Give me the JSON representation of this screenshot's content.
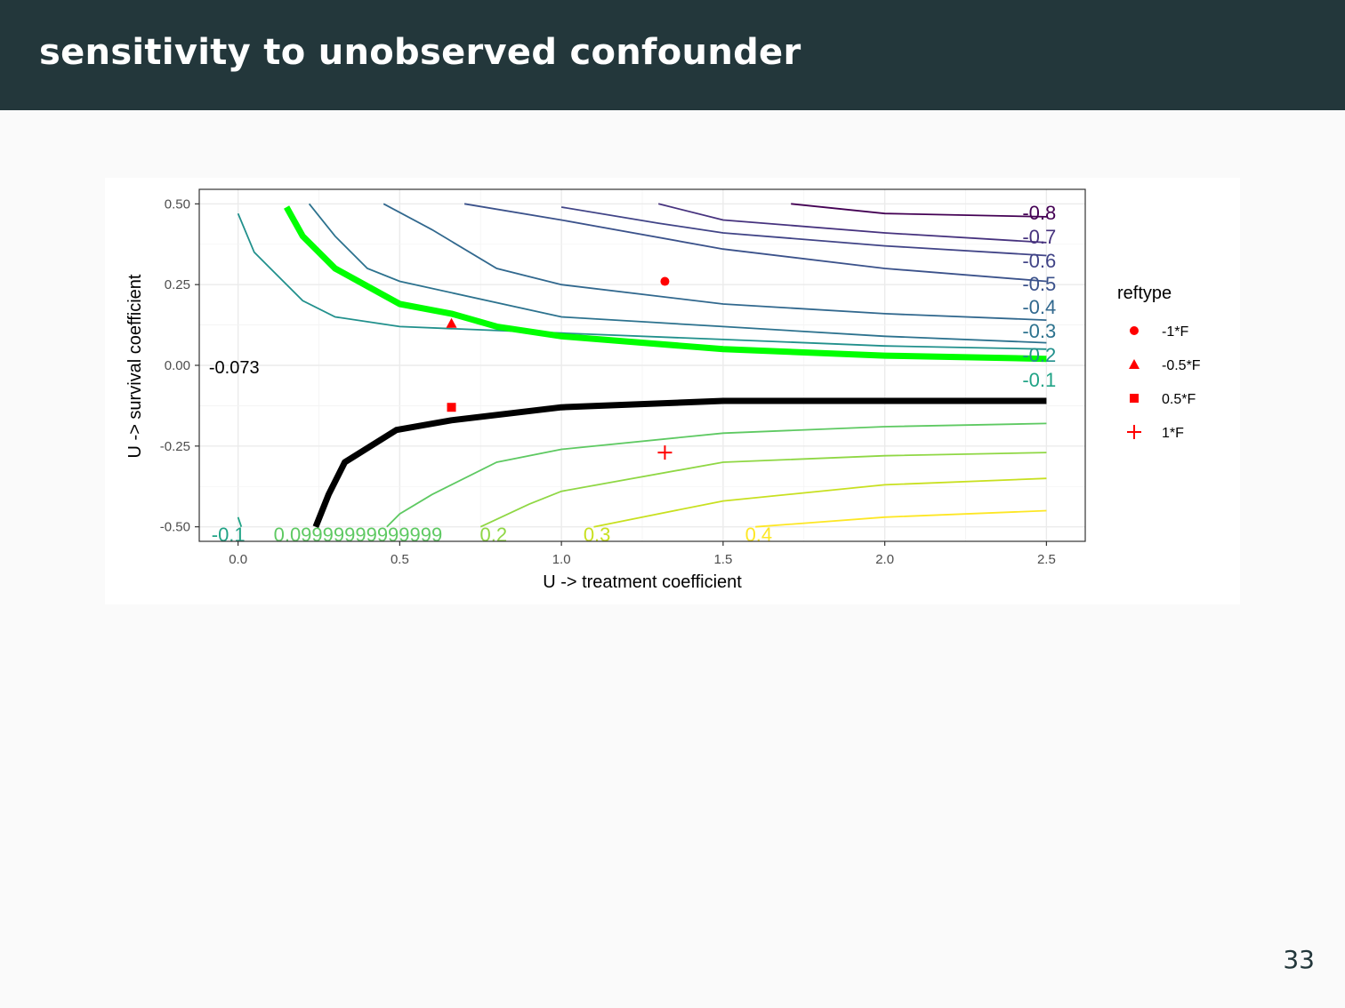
{
  "slide": {
    "title": "sensitivity to unobserved confounder",
    "page_number": "33"
  },
  "chart_data": {
    "type": "line",
    "xlabel": "U -> treatment coefficient",
    "ylabel": "U -> survival coefficient",
    "xlim": [
      -0.12,
      2.62
    ],
    "ylim": [
      -0.545,
      0.545
    ],
    "x_ticks": [
      "0.0",
      "0.5",
      "1.0",
      "1.5",
      "2.0",
      "2.5"
    ],
    "x_tick_values": [
      0,
      0.5,
      1.0,
      1.5,
      2.0,
      2.5
    ],
    "y_ticks": [
      "-0.50",
      "-0.25",
      "0.00",
      "0.25",
      "0.50"
    ],
    "y_tick_values": [
      -0.5,
      -0.25,
      0,
      0.25,
      0.5
    ],
    "grid": true,
    "legend": {
      "title": "reftype",
      "position": "right",
      "entries": [
        {
          "label": "-1*F",
          "shape": "circle"
        },
        {
          "label": "-0.5*F",
          "shape": "triangle"
        },
        {
          "label": "0.5*F",
          "shape": "square"
        },
        {
          "label": "1*F",
          "shape": "plus"
        }
      ]
    },
    "contours": [
      {
        "label": "-0.8",
        "color": "#440154",
        "points": [
          [
            1.71,
            0.5
          ],
          [
            2.0,
            0.47
          ],
          [
            2.5,
            0.46
          ]
        ]
      },
      {
        "label": "-0.7",
        "color": "#46327e",
        "points": [
          [
            1.3,
            0.5
          ],
          [
            1.5,
            0.45
          ],
          [
            2.0,
            0.41
          ],
          [
            2.5,
            0.38
          ]
        ]
      },
      {
        "label": "-0.6",
        "color": "#414487",
        "points": [
          [
            1.0,
            0.49
          ],
          [
            1.3,
            0.44
          ],
          [
            1.5,
            0.41
          ],
          [
            2.0,
            0.37
          ],
          [
            2.5,
            0.34
          ]
        ]
      },
      {
        "label": "-0.5",
        "color": "#3b528b",
        "points": [
          [
            0.7,
            0.5
          ],
          [
            1.0,
            0.45
          ],
          [
            1.5,
            0.36
          ],
          [
            2.0,
            0.3
          ],
          [
            2.5,
            0.26
          ]
        ]
      },
      {
        "label": "-0.4",
        "color": "#31688e",
        "points": [
          [
            0.45,
            0.5
          ],
          [
            0.6,
            0.42
          ],
          [
            0.8,
            0.3
          ],
          [
            1.0,
            0.25
          ],
          [
            1.5,
            0.19
          ],
          [
            2.0,
            0.16
          ],
          [
            2.5,
            0.14
          ]
        ]
      },
      {
        "label": "-0.3",
        "color": "#2c728e",
        "points": [
          [
            0.22,
            0.5
          ],
          [
            0.3,
            0.4
          ],
          [
            0.4,
            0.3
          ],
          [
            0.5,
            0.26
          ],
          [
            1.0,
            0.15
          ],
          [
            1.5,
            0.12
          ],
          [
            2.0,
            0.09
          ],
          [
            2.5,
            0.07
          ]
        ]
      },
      {
        "label": "-0.2",
        "color": "#21908c",
        "points": [
          [
            0.0,
            0.47
          ],
          [
            0.05,
            0.35
          ],
          [
            0.1,
            0.3
          ],
          [
            0.2,
            0.2
          ],
          [
            0.3,
            0.15
          ],
          [
            0.5,
            0.12
          ],
          [
            1.0,
            0.1
          ],
          [
            1.5,
            0.08
          ],
          [
            2.0,
            0.06
          ],
          [
            2.5,
            0.05
          ]
        ]
      },
      {
        "label": "-0.1",
        "color": "#20a386",
        "points": [
          [
            0.0,
            -0.47
          ],
          [
            0.01,
            -0.5
          ]
        ]
      },
      {
        "label": "0.1",
        "color": "#5ec962",
        "points": [
          [
            0.46,
            -0.5
          ],
          [
            0.5,
            -0.46
          ],
          [
            0.6,
            -0.4
          ],
          [
            0.8,
            -0.3
          ],
          [
            1.0,
            -0.26
          ],
          [
            1.5,
            -0.21
          ],
          [
            2.0,
            -0.19
          ],
          [
            2.5,
            -0.18
          ]
        ]
      },
      {
        "label": "0.2",
        "color": "#8fd744",
        "points": [
          [
            0.75,
            -0.5
          ],
          [
            0.9,
            -0.43
          ],
          [
            1.0,
            -0.39
          ],
          [
            1.5,
            -0.3
          ],
          [
            2.0,
            -0.28
          ],
          [
            2.5,
            -0.27
          ]
        ]
      },
      {
        "label": "0.3",
        "color": "#c8e020",
        "points": [
          [
            1.1,
            -0.5
          ],
          [
            1.3,
            -0.46
          ],
          [
            1.5,
            -0.42
          ],
          [
            2.0,
            -0.37
          ],
          [
            2.5,
            -0.35
          ]
        ]
      },
      {
        "label": "0.4",
        "color": "#fde725",
        "points": [
          [
            1.6,
            -0.5
          ],
          [
            2.0,
            -0.47
          ],
          [
            2.5,
            -0.45
          ]
        ]
      }
    ],
    "right_labels": [
      "-0.8",
      "-0.7",
      "-0.6",
      "-0.5",
      "-0.4",
      "-0.3",
      "-0.2",
      "-0.1"
    ],
    "bottom_labels": [
      {
        "text": "-0.1",
        "color": "#20a386"
      },
      {
        "text": "0.09999999999999",
        "color": "#5ec962"
      },
      {
        "text": "0.2",
        "color": "#8fd744"
      },
      {
        "text": "0.3",
        "color": "#c8e020"
      },
      {
        "text": "0.4",
        "color": "#fde725"
      }
    ],
    "highlight_green": {
      "color": "#00ff00",
      "points": [
        [
          0.15,
          0.49
        ],
        [
          0.2,
          0.4
        ],
        [
          0.3,
          0.3
        ],
        [
          0.5,
          0.19
        ],
        [
          0.66,
          0.16
        ],
        [
          0.8,
          0.12
        ],
        [
          1.0,
          0.09
        ],
        [
          1.5,
          0.05
        ],
        [
          2.0,
          0.03
        ],
        [
          2.5,
          0.02
        ]
      ]
    },
    "highlight_black": {
      "color": "#000000",
      "label": "-0.073",
      "points": [
        [
          0.24,
          -0.5
        ],
        [
          0.28,
          -0.4
        ],
        [
          0.33,
          -0.3
        ],
        [
          0.49,
          -0.2
        ],
        [
          0.66,
          -0.17
        ],
        [
          1.0,
          -0.13
        ],
        [
          1.5,
          -0.11
        ],
        [
          2.0,
          -0.11
        ],
        [
          2.5,
          -0.11
        ]
      ]
    },
    "reference_points": [
      {
        "label": "-1*F",
        "shape": "circle",
        "x": 1.32,
        "y": 0.26
      },
      {
        "label": "-0.5*F",
        "shape": "triangle",
        "x": 0.66,
        "y": 0.13
      },
      {
        "label": "0.5*F",
        "shape": "square",
        "x": 0.66,
        "y": -0.13
      },
      {
        "label": "1*F",
        "shape": "plus",
        "x": 1.32,
        "y": -0.27
      }
    ],
    "marker_color": "#ff0000"
  }
}
